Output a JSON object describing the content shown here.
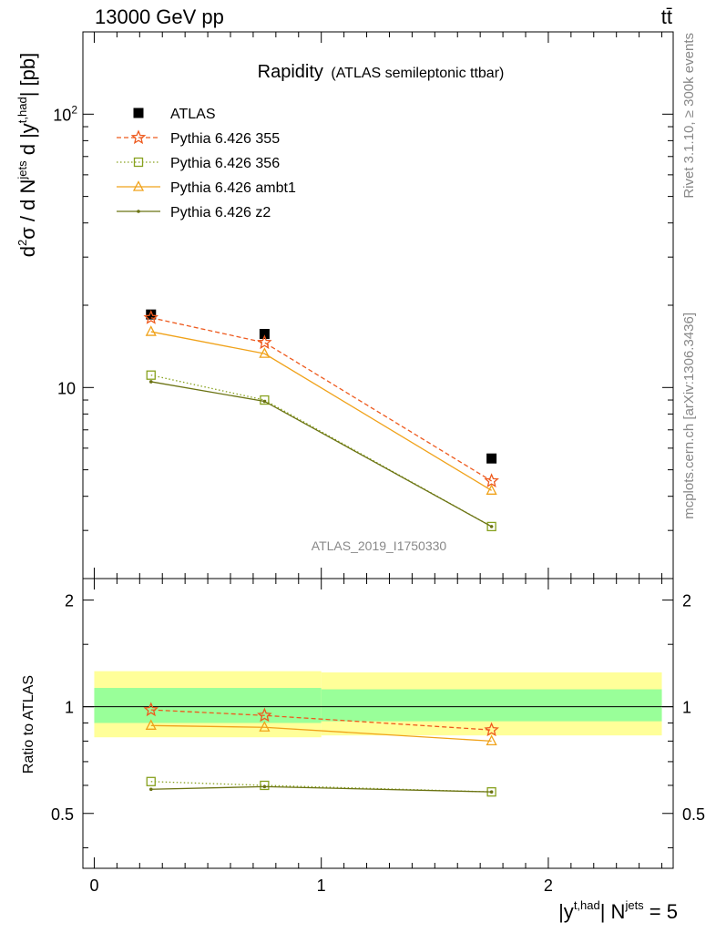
{
  "header": {
    "left": "13000 GeV pp",
    "right": "tt̄"
  },
  "side": {
    "rivet": "Rivet 3.1.10, ≥ 300k events",
    "mcplots": "mcplots.cern.ch [arXiv:1306.3436]"
  },
  "watermark": "ATLAS_2019_I1750330",
  "colors": {
    "atlas": "#000000",
    "p355": "#ee5a1e",
    "p356": "#87a11e",
    "ambt1": "#f0a21a",
    "z2": "#6b7313",
    "band_inner": "#99ff99",
    "band_outer": "#ffff99"
  },
  "chart_data": [
    {
      "type": "line",
      "panel": "main",
      "title": "Rapidity",
      "subtitle": "(ATLAS semileptonic ttbar)",
      "ylabel": "d²σ / d N^jets d |y^t,had| [pb]",
      "yscale": "log",
      "ylim": [
        2,
        200
      ],
      "xlim": [
        -0.05,
        2.55
      ],
      "ytick_labels": [
        "10",
        "10²"
      ],
      "legend_position": "top-left",
      "x": [
        0.25,
        0.75,
        1.75
      ],
      "series": [
        {
          "name": "ATLAS",
          "values": [
            18.5,
            15.7,
            5.5
          ],
          "style": "data"
        },
        {
          "name": "Pythia 6.426 355",
          "values": [
            18.0,
            14.6,
            4.55
          ],
          "style": "dashed",
          "marker": "star"
        },
        {
          "name": "Pythia 6.426 356",
          "values": [
            11.1,
            9.0,
            3.1
          ],
          "style": "dotted",
          "marker": "open-square"
        },
        {
          "name": "Pythia 6.426 ambt1",
          "values": [
            16.0,
            13.3,
            4.2
          ],
          "style": "solid",
          "marker": "open-triangle"
        },
        {
          "name": "Pythia 6.426 z2",
          "values": [
            10.5,
            8.9,
            3.1
          ],
          "style": "solid",
          "marker": "dot"
        }
      ]
    },
    {
      "type": "line",
      "panel": "ratio",
      "ylabel": "Ratio to ATLAS",
      "xlabel": "|y^t,had| N^jets = 5",
      "ylim": [
        0.35,
        2.3
      ],
      "xlim": [
        -0.05,
        2.55
      ],
      "ytick_labels": [
        "0.5",
        "1",
        "2"
      ],
      "xtick_labels": [
        "0",
        "1",
        "2"
      ],
      "x": [
        0.25,
        0.75,
        1.75
      ],
      "bands": [
        {
          "xrange": [
            0,
            1
          ],
          "inner": [
            0.9,
            1.13
          ],
          "outer": [
            0.82,
            1.26
          ]
        },
        {
          "xrange": [
            1,
            2.5
          ],
          "inner": [
            0.91,
            1.12
          ],
          "outer": [
            0.83,
            1.25
          ]
        }
      ],
      "series": [
        {
          "name": "Pythia 6.426 355",
          "values": [
            0.98,
            0.945,
            0.86
          ]
        },
        {
          "name": "Pythia 6.426 356",
          "values": [
            0.615,
            0.6,
            0.575
          ]
        },
        {
          "name": "Pythia 6.426 ambt1",
          "values": [
            0.885,
            0.875,
            0.8
          ]
        },
        {
          "name": "Pythia 6.426 z2",
          "values": [
            0.585,
            0.595,
            0.575
          ]
        }
      ]
    }
  ]
}
